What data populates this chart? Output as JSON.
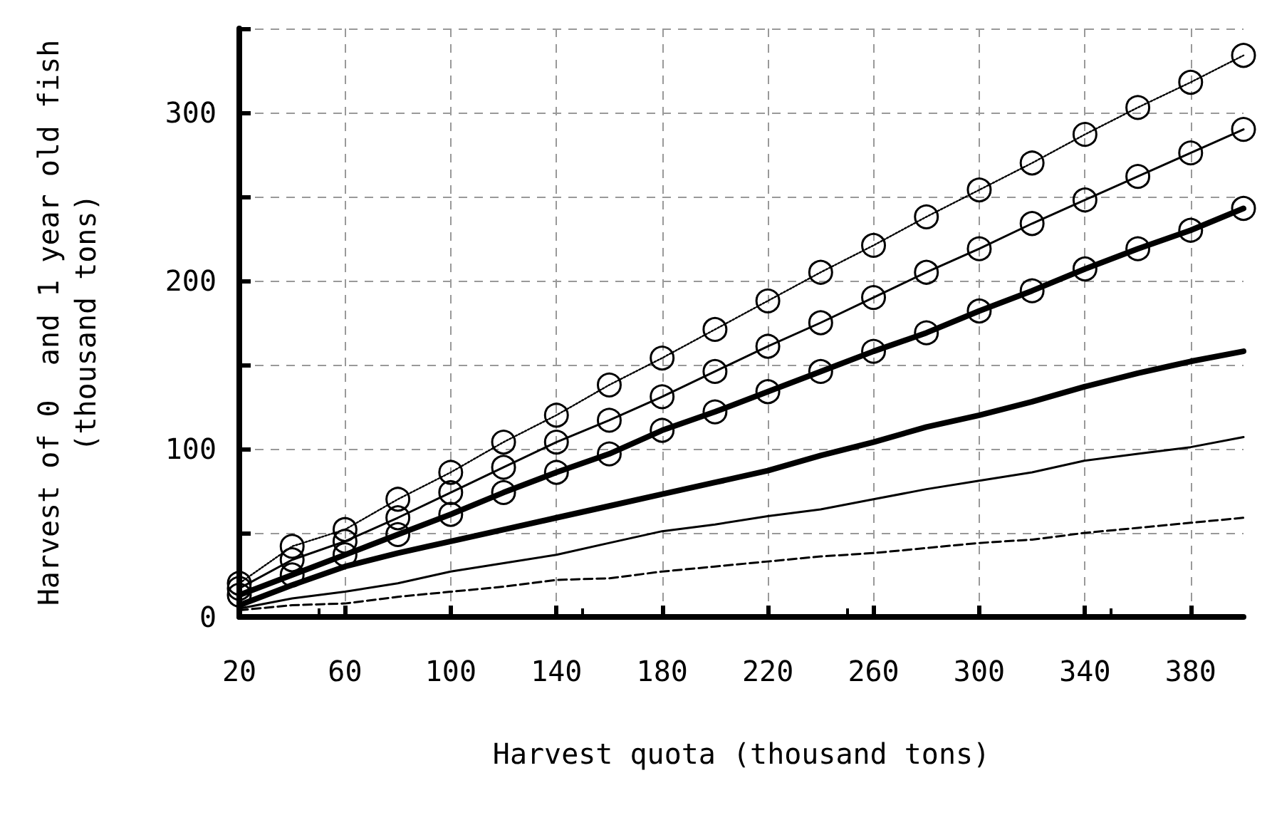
{
  "chart_data": {
    "type": "line",
    "xlabel": "Harvest quota (thousand tons)",
    "ylabel": "Harvest of 0  and 1 year old fish\n(thousand tons)",
    "x": [
      20,
      40,
      60,
      80,
      100,
      120,
      140,
      160,
      180,
      200,
      220,
      240,
      260,
      280,
      300,
      320,
      340,
      360,
      380,
      400
    ],
    "series": [
      {
        "color": "#000000",
        "line_style": "dotted",
        "marker": "circle",
        "values": [
          20,
          42,
          52,
          70,
          86,
          104,
          120,
          138,
          154,
          171,
          188,
          205,
          221,
          238,
          254,
          270,
          287,
          303,
          318,
          334
        ]
      },
      {
        "color": "#000000",
        "line_style": "solid",
        "marker": "circle",
        "values": [
          17,
          34,
          45,
          59,
          74,
          89,
          104,
          117,
          131,
          146,
          161,
          175,
          190,
          205,
          219,
          234,
          248,
          262,
          276,
          290
        ]
      },
      {
        "color": "#000000",
        "line_style": "solid",
        "marker": "circle",
        "values": [
          13,
          25,
          37,
          49,
          61,
          74,
          86,
          97,
          111,
          122,
          134,
          146,
          158,
          169,
          182,
          194,
          207,
          219,
          230,
          243
        ]
      },
      {
        "color": "#000000",
        "line_style": "solid",
        "marker": "none",
        "values": [
          7,
          19,
          30,
          38,
          45,
          52,
          59,
          66,
          73,
          80,
          87,
          96,
          104,
          113,
          120,
          128,
          137,
          145,
          152,
          158
        ]
      },
      {
        "color": "#000000",
        "line_style": "solid",
        "marker": "none",
        "values": [
          5,
          11,
          15,
          20,
          27,
          32,
          37,
          44,
          51,
          55,
          60,
          64,
          70,
          76,
          81,
          86,
          93,
          97,
          101,
          107
        ]
      },
      {
        "color": "#000000",
        "line_style": "dashed",
        "marker": "none",
        "values": [
          4,
          7,
          8,
          12,
          15,
          18,
          22,
          23,
          27,
          30,
          33,
          36,
          38,
          41,
          44,
          46,
          50,
          53,
          56,
          59
        ]
      }
    ],
    "xlim": [
      20,
      400
    ],
    "ylim": [
      0,
      350
    ],
    "xticks": [
      20,
      60,
      100,
      140,
      180,
      220,
      260,
      300,
      340,
      380
    ],
    "yticks": [
      0,
      {
        "value": 50,
        "label": null
      },
      100,
      {
        "value": 150,
        "label": null
      },
      200,
      {
        "value": 250,
        "label": null
      },
      300,
      {
        "value": 350,
        "label": null
      }
    ],
    "grid": true
  }
}
